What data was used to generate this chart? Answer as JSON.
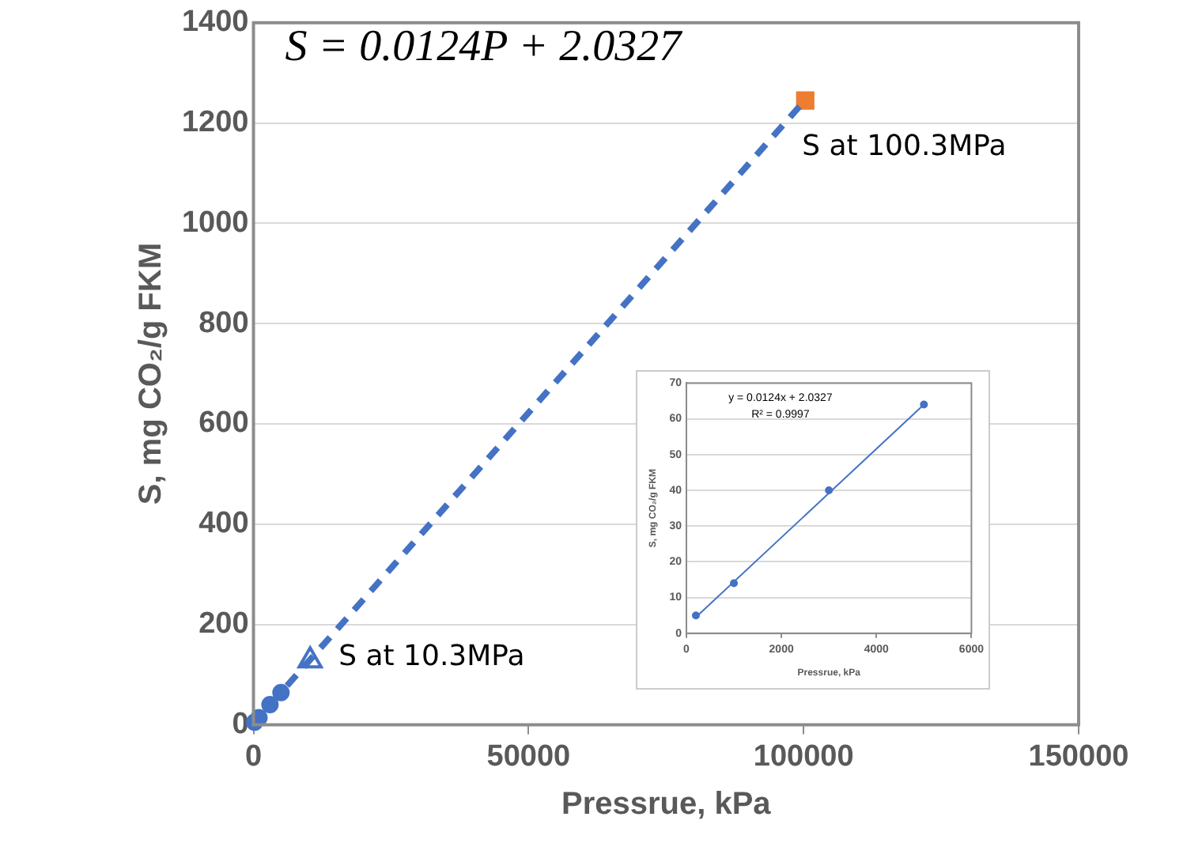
{
  "chart_data": [
    {
      "type": "scatter",
      "xlabel": "Pressrue, kPa",
      "ylabel": "S, mg CO₂/g FKM",
      "xlim": [
        0,
        150000
      ],
      "xticks": [
        0,
        50000,
        100000,
        150000
      ],
      "ylim": [
        0,
        1400
      ],
      "yticks": [
        0,
        200,
        400,
        600,
        800,
        1000,
        1200,
        1400
      ],
      "grid": "y",
      "legend": false,
      "series": [
        {
          "type": "line",
          "x": [
            0,
            100300
          ],
          "values": [
            2,
            1246
          ],
          "color": "#4472c4",
          "marker": "none",
          "line_style": "dashed"
        },
        {
          "x": [
            200,
            1000,
            3000,
            5000
          ],
          "values": [
            5,
            14,
            40,
            64
          ],
          "color": "#4472c4",
          "marker": "circle"
        },
        {
          "x": [
            10300
          ],
          "values": [
            128
          ],
          "color": "#4472c4",
          "marker": "triangle"
        },
        {
          "x": [
            100300
          ],
          "values": [
            1245
          ],
          "color": "#ed7d31",
          "marker": "square"
        }
      ],
      "annotations": [
        "S = 0.0124P + 2.0327",
        {
          "text": "S at 100.3MPa",
          "x": 100300,
          "y": 1245
        },
        {
          "text": "S at 10.3MPa",
          "x": 10300,
          "y": 128
        }
      ]
    },
    {
      "type": "scatter",
      "xlabel": "Pressrue, kPa",
      "ylabel": "S, mg CO₂/g FKM",
      "xlim": [
        0,
        6000
      ],
      "xticks": [
        0,
        2000,
        4000,
        6000
      ],
      "ylim": [
        0,
        70
      ],
      "yticks": [
        0,
        10,
        20,
        30,
        40,
        50,
        60,
        70
      ],
      "grid": "y",
      "legend": false,
      "series": [
        {
          "type": "line",
          "x": [
            200,
            5000
          ],
          "values": [
            4.5,
            64
          ],
          "color": "#4472c4",
          "marker": "none",
          "line_style": "solid"
        },
        {
          "x": [
            200,
            1000,
            3000,
            5000
          ],
          "values": [
            5,
            14,
            40,
            64
          ],
          "color": "#4472c4",
          "marker": "circle"
        }
      ],
      "annotations": [
        "y = 0.0124x + 2.0327",
        "R² = 0.9997"
      ]
    }
  ]
}
